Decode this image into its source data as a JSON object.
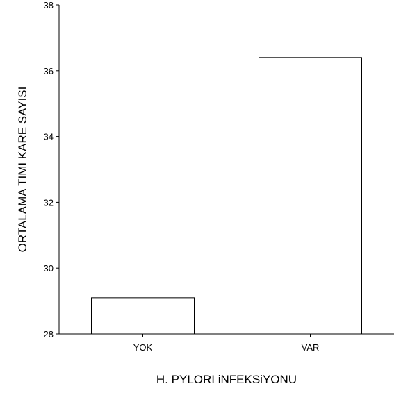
{
  "chart_data": {
    "type": "bar",
    "categories": [
      "YOK",
      "VAR"
    ],
    "values": [
      29.1,
      36.4
    ],
    "title": "",
    "xlabel": "H. PYLORI iNFEKSiYONU",
    "ylabel": "ORTALAMA TIMI KARE SAYISI",
    "ylim": [
      28,
      38
    ],
    "yticks": [
      "28",
      "30",
      "32",
      "34",
      "36",
      "38"
    ],
    "grid": false,
    "bar_fill": "#ffffff",
    "bar_stroke": "#000000"
  }
}
